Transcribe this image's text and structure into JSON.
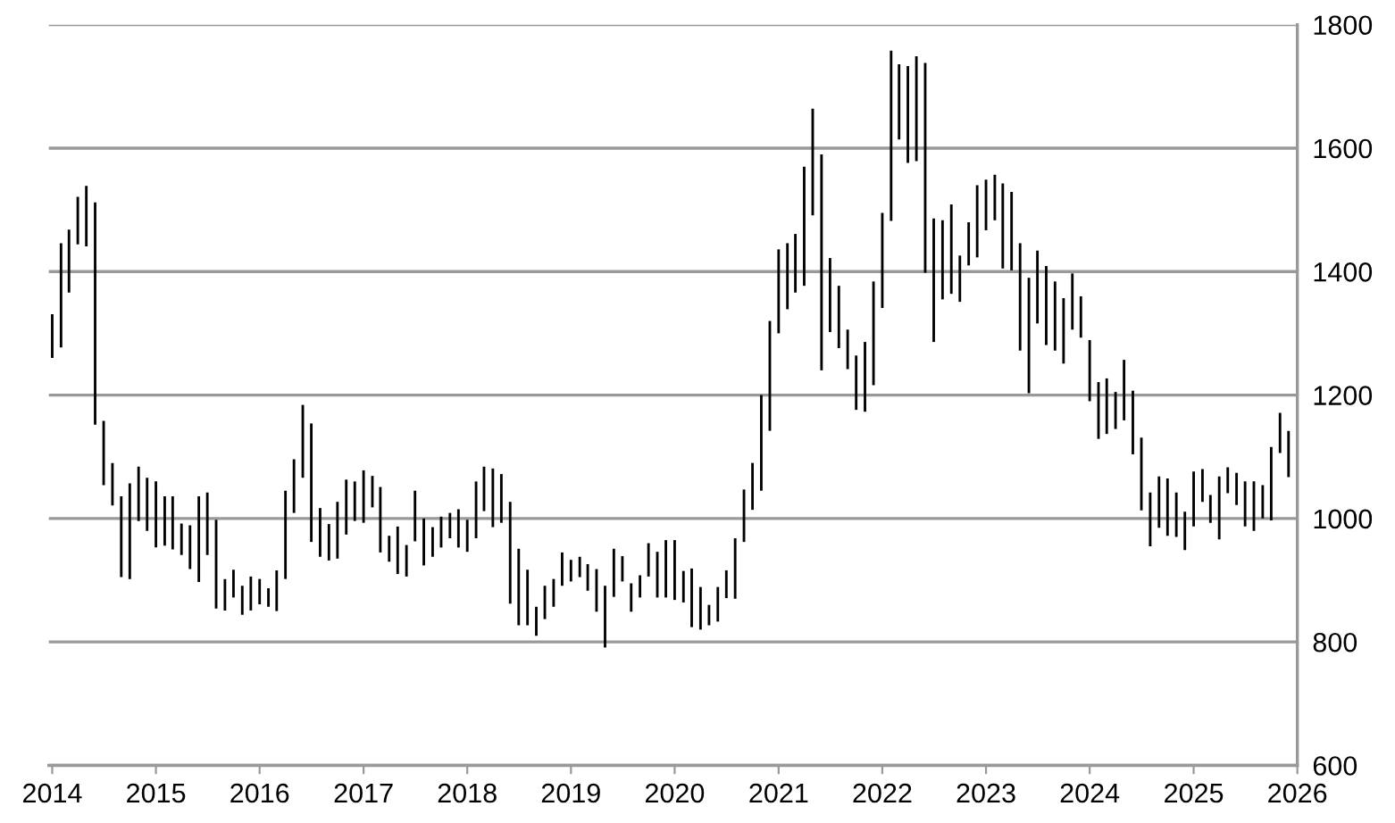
{
  "chart_data": {
    "type": "bar",
    "x": [
      "2014-01",
      "2014-02",
      "2014-03",
      "2014-04",
      "2014-05",
      "2014-06",
      "2014-07",
      "2014-08",
      "2014-09",
      "2014-10",
      "2014-11",
      "2014-12",
      "2015-01",
      "2015-02",
      "2015-03",
      "2015-04",
      "2015-05",
      "2015-06",
      "2015-07",
      "2015-08",
      "2015-09",
      "2015-10",
      "2015-11",
      "2015-12",
      "2016-01",
      "2016-02",
      "2016-03",
      "2016-04",
      "2016-05",
      "2016-06",
      "2016-07",
      "2016-08",
      "2016-09",
      "2016-10",
      "2016-11",
      "2016-12",
      "2017-01",
      "2017-02",
      "2017-03",
      "2017-04",
      "2017-05",
      "2017-06",
      "2017-07",
      "2017-08",
      "2017-09",
      "2017-10",
      "2017-11",
      "2017-12",
      "2018-01",
      "2018-02",
      "2018-03",
      "2018-04",
      "2018-05",
      "2018-06",
      "2018-07",
      "2018-08",
      "2018-09",
      "2018-10",
      "2018-11",
      "2018-12",
      "2019-01",
      "2019-02",
      "2019-03",
      "2019-04",
      "2019-05",
      "2019-06",
      "2019-07",
      "2019-08",
      "2019-09",
      "2019-10",
      "2019-11",
      "2019-12",
      "2020-01",
      "2020-02",
      "2020-03",
      "2020-04",
      "2020-05",
      "2020-06",
      "2020-07",
      "2020-08",
      "2020-09",
      "2020-10",
      "2020-11",
      "2020-12",
      "2021-01",
      "2021-02",
      "2021-03",
      "2021-04",
      "2021-05",
      "2021-06",
      "2021-07",
      "2021-08",
      "2021-09",
      "2021-10",
      "2021-11",
      "2021-12",
      "2022-01",
      "2022-02",
      "2022-03",
      "2022-04",
      "2022-05",
      "2022-06",
      "2022-07",
      "2022-08",
      "2022-09",
      "2022-10",
      "2022-11",
      "2022-12",
      "2023-01",
      "2023-02",
      "2023-03",
      "2023-04",
      "2023-05",
      "2023-06",
      "2023-07",
      "2023-08",
      "2023-09",
      "2023-10",
      "2023-11",
      "2023-12",
      "2024-01",
      "2024-02",
      "2024-03",
      "2024-04",
      "2024-05",
      "2024-06",
      "2024-07",
      "2024-08",
      "2024-09",
      "2024-10",
      "2024-11",
      "2024-12",
      "2025-01",
      "2025-02",
      "2025-03",
      "2025-04",
      "2025-05",
      "2025-06",
      "2025-07",
      "2025-08",
      "2025-09",
      "2025-10",
      "2025-11",
      "2025-12"
    ],
    "base": [
      1260,
      1277,
      1366,
      1444,
      1441,
      1152,
      1054,
      1021,
      905,
      902,
      996,
      980,
      953,
      956,
      950,
      941,
      918,
      897,
      941,
      854,
      851,
      872,
      844,
      851,
      861,
      857,
      850,
      902,
      1009,
      1066,
      962,
      938,
      932,
      935,
      974,
      996,
      993,
      1018,
      945,
      930,
      910,
      906,
      963,
      924,
      938,
      953,
      968,
      953,
      946,
      968,
      1012,
      986,
      993,
      862,
      827,
      827,
      810,
      837,
      857,
      891,
      898,
      905,
      883,
      849,
      791,
      873,
      898,
      849,
      872,
      906,
      872,
      872,
      868,
      864,
      824,
      820,
      827,
      833,
      871,
      870,
      962,
      1014,
      1045,
      1142,
      1300,
      1339,
      1366,
      1377,
      1491,
      1240,
      1302,
      1276,
      1242,
      1176,
      1173,
      1216,
      1341,
      1482,
      1614,
      1576,
      1579,
      1398,
      1286,
      1355,
      1364,
      1351,
      1410,
      1423,
      1467,
      1483,
      1405,
      1402,
      1272,
      1203,
      1316,
      1281,
      1272,
      1251,
      1306,
      1293,
      1190,
      1129,
      1137,
      1145,
      1159,
      1104,
      1013,
      955,
      985,
      972,
      970,
      949,
      987,
      1027,
      993,
      966,
      1041,
      1022,
      987,
      980,
      1000,
      997,
      1106,
      1067
    ],
    "color": "#000000",
    "values": [
      71,
      169,
      102,
      77,
      98,
      360,
      104,
      69,
      131,
      155,
      88,
      86,
      107,
      80,
      86,
      51,
      71,
      139,
      101,
      144,
      51,
      45,
      47,
      55,
      41,
      30,
      66,
      143,
      87,
      118,
      192,
      79,
      59,
      92,
      89,
      64,
      85,
      51,
      106,
      42,
      77,
      51,
      82,
      76,
      48,
      50,
      41,
      62,
      52,
      92,
      72,
      95,
      79,
      165,
      124,
      90,
      47,
      54,
      45,
      54,
      35,
      33,
      43,
      69,
      100,
      78,
      41,
      46,
      36,
      54,
      74,
      93,
      97,
      51,
      95,
      69,
      33,
      56,
      45,
      98,
      85,
      76,
      155,
      178,
      136,
      107,
      95,
      193,
      173,
      350,
      120,
      101,
      64,
      88,
      113,
      168,
      154,
      276,
      122,
      157,
      170,
      340,
      200,
      128,
      145,
      75,
      70,
      117,
      82,
      74,
      138,
      127,
      174,
      187,
      118,
      128,
      112,
      106,
      91,
      67,
      99,
      92,
      90,
      60,
      98,
      103,
      118,
      87,
      83,
      93,
      72,
      62,
      89,
      53,
      45,
      102,
      42,
      52,
      73,
      80,
      54,
      119,
      65,
      75
    ],
    "xlim": [
      "2013-12-20",
      "2026-01-01"
    ],
    "xticks": [
      "2014",
      "2015",
      "2016",
      "2017",
      "2018",
      "2019",
      "2020",
      "2021",
      "2022",
      "2023",
      "2024",
      "2025",
      "2026"
    ],
    "ylim": [
      600,
      1800
    ],
    "yticks": [
      600,
      800,
      1000,
      1200,
      1400,
      1600,
      1800
    ],
    "grid": "y"
  }
}
